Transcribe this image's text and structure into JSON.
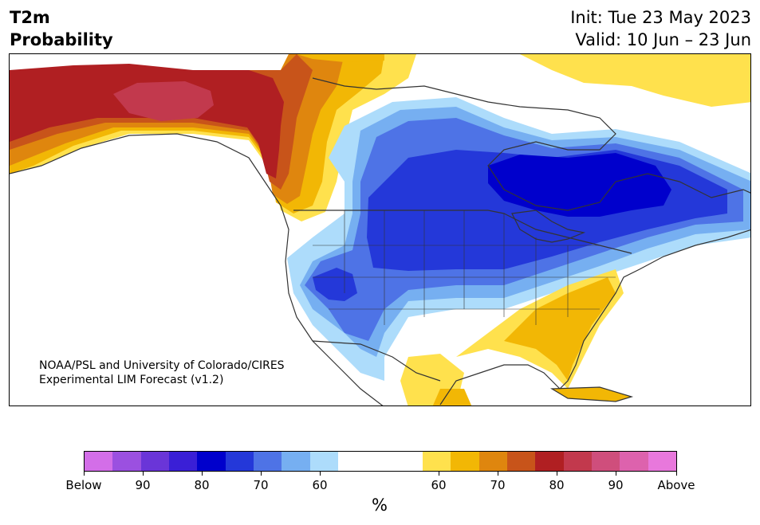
{
  "title": {
    "left_line1": "T2m",
    "left_line2": "Probability",
    "right_line1": "Init: Tue 23 May 2023",
    "right_line2": "Valid: 10 Jun – 23 Jun"
  },
  "credit": {
    "line1": "NOAA/PSL and University of Colorado/CIRES",
    "line2": "Experimental LIM Forecast (v1.2)"
  },
  "colorbar": {
    "units": "%",
    "tick_labels": [
      "Below",
      "90",
      "80",
      "70",
      "60",
      "60",
      "70",
      "80",
      "90",
      "Above"
    ],
    "below_colors": [
      "#d36ee8",
      "#9b50e0",
      "#6a35d8",
      "#3a1fd6",
      "#0000cc",
      "#2438d9",
      "#4e73e6",
      "#76aff1",
      "#addcfb"
    ],
    "neutral_color": "#ffffff",
    "above_colors": [
      "#ffe14d",
      "#f2b705",
      "#df860e",
      "#c8541a",
      "#b01f22",
      "#c2394d",
      "#cf4e7c",
      "#dd62ad",
      "#e878dc"
    ]
  },
  "map": {
    "region": "North America",
    "regions": [
      {
        "name": "Alaska / NW Canada",
        "category": "Above 80-90"
      },
      {
        "name": "Western Canada",
        "category": "Above 60-80"
      },
      {
        "name": "Central US / Great Lakes",
        "category": "Below 70-80"
      },
      {
        "name": "Hudson Bay region",
        "category": "Below 80"
      },
      {
        "name": "Southeast US / Florida",
        "category": "Above 60-70"
      },
      {
        "name": "Mexico",
        "category": "Above 60"
      },
      {
        "name": "Arctic islands",
        "category": "Above 60"
      }
    ]
  }
}
